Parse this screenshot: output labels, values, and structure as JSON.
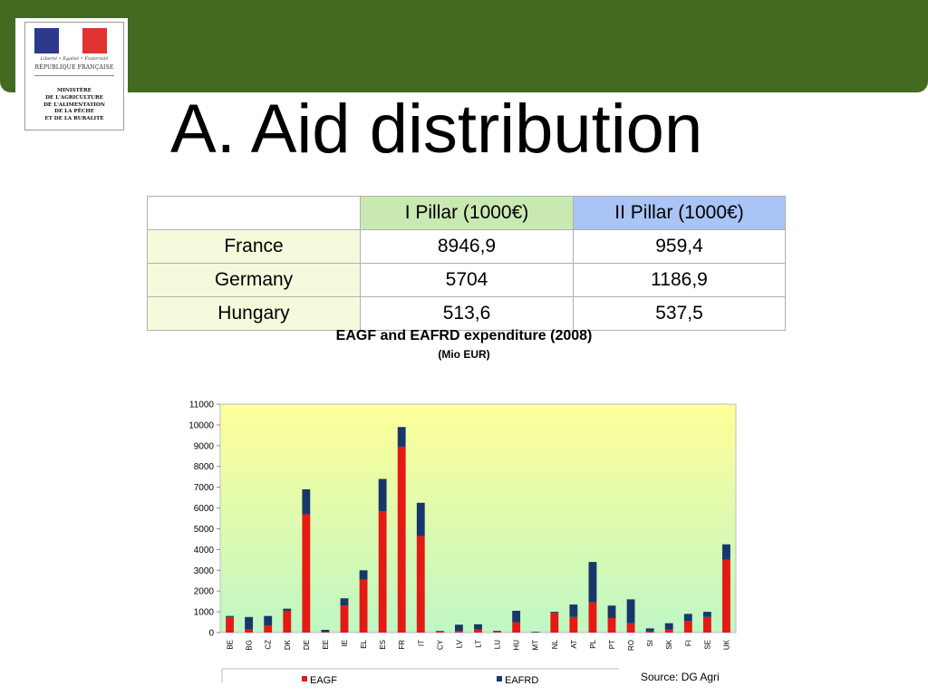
{
  "logo": {
    "motto": "Liberté • Égalité • Fraternité",
    "republic": "RÉPUBLIQUE FRANÇAISE",
    "ministry_lines": [
      "MINISTÈRE",
      "DE L'AGRICULTURE",
      "DE L'ALIMENTATION",
      "DE LA PÊCHE",
      "ET DE LA RURALITÉ"
    ]
  },
  "page": {
    "title": "A. Aid distribution",
    "source": "Source: DG Agri"
  },
  "table": {
    "headers": [
      "",
      "I Pillar (1000€)",
      "II Pillar (1000€)"
    ],
    "rows": [
      {
        "country": "France",
        "pillar1": "8946,9",
        "pillar2": "959,4"
      },
      {
        "country": "Germany",
        "pillar1": "5704",
        "pillar2": "1186,9"
      },
      {
        "country": "Hungary",
        "pillar1": "513,6",
        "pillar2": "537,5"
      }
    ]
  },
  "colors": {
    "top_bar": "#446a1f",
    "eagf": "#e31b14",
    "eafrd": "#17376b",
    "plot_top": "#ffff99",
    "plot_bottom": "#bff7c4"
  },
  "chart_data": {
    "type": "bar",
    "stacked": true,
    "title": "EAGF and EAFRD expenditure (2008)",
    "subtitle": "(Mio EUR)",
    "categories": [
      "BE",
      "BG",
      "CZ",
      "DK",
      "DE",
      "EE",
      "IE",
      "EL",
      "ES",
      "FR",
      "IT",
      "CY",
      "LV",
      "LT",
      "LU",
      "HU",
      "MT",
      "NL",
      "AT",
      "PL",
      "PT",
      "RO",
      "SI",
      "SK",
      "FI",
      "SE",
      "UK"
    ],
    "series": [
      {
        "name": "EAGF",
        "values": [
          750,
          150,
          350,
          1050,
          5700,
          30,
          1300,
          2550,
          5850,
          8950,
          4650,
          50,
          80,
          150,
          40,
          500,
          10,
          950,
          750,
          1450,
          700,
          450,
          50,
          150,
          550,
          750,
          3500
        ]
      },
      {
        "name": "EAFRD",
        "values": [
          50,
          600,
          450,
          100,
          1200,
          100,
          350,
          450,
          1550,
          950,
          1600,
          30,
          300,
          250,
          40,
          550,
          30,
          50,
          600,
          1950,
          600,
          1150,
          150,
          300,
          350,
          250,
          750
        ]
      }
    ],
    "ylim": [
      0,
      11000
    ],
    "yticks": [
      0,
      1000,
      2000,
      3000,
      4000,
      5000,
      6000,
      7000,
      8000,
      9000,
      10000,
      11000
    ],
    "grid": false,
    "legend": "bottom"
  }
}
